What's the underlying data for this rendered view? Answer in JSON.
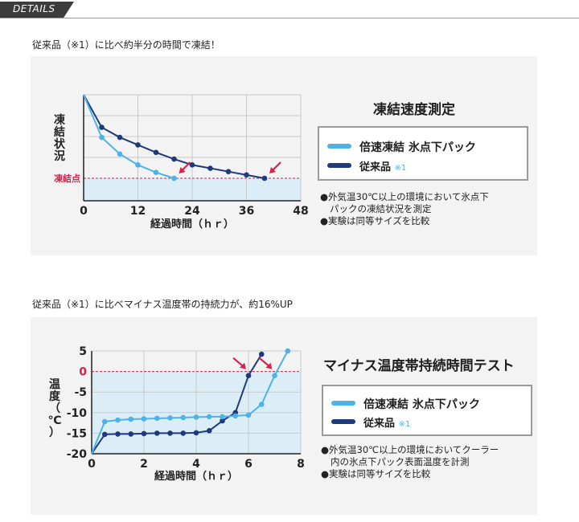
{
  "header": {
    "tab_label": "DETAILS"
  },
  "section1": {
    "caption": "従来品（※1）に比べ約半分の時間で凍結！",
    "title": "凍結速度測定",
    "legend": {
      "series1_label": "倍速凍結 氷点下パック",
      "series2_label": "従来品",
      "series2_note": "※1"
    },
    "notes": [
      "●外気温30℃以上の環境において氷点下",
      "パックの凍結状況を測定",
      "●実験は同等サイズを比較"
    ]
  },
  "section2": {
    "caption": "従来品（※1）に比べマイナス温度帯の持続力が、約16%UP",
    "title": "マイナス温度帯持続時間テスト",
    "legend": {
      "series1_label": "倍速凍結 氷点下パック",
      "series2_label": "従来品",
      "series2_note": "※1"
    },
    "notes": [
      "●外気温30℃以上の環境においてクーラー",
      "内の氷点下パック表面温度を計測",
      "●実験は同等サイズを比較"
    ]
  },
  "colors": {
    "series_light": "#4db3e6",
    "series_dark": "#1f3a7a",
    "marker": "#d6214a",
    "zone_fill": "#dbeef8",
    "grid": "#c9c9c9",
    "axis": "#222222"
  },
  "chart_data": [
    {
      "type": "line",
      "xlabel": "経過時間（ｈｒ）",
      "ylabel": "凍結状況",
      "threshold_label": "凍結点",
      "xlim": [
        0,
        48
      ],
      "xticks": [
        0,
        12,
        24,
        36,
        48
      ],
      "ylim": [
        0,
        100
      ],
      "threshold": 0,
      "grid": true,
      "series": [
        {
          "name": "倍速凍結 氷点下パック",
          "x": [
            0,
            4,
            8,
            12,
            16,
            20
          ],
          "y": [
            100,
            49,
            29,
            16,
            7,
            0
          ]
        },
        {
          "name": "従来品",
          "x": [
            0,
            4,
            8,
            12,
            16,
            20,
            24,
            28,
            32,
            36,
            40
          ],
          "y": [
            100,
            61,
            49,
            40,
            31,
            23,
            16,
            12,
            8,
            4,
            0
          ]
        }
      ],
      "arrows_at": [
        20,
        40
      ]
    },
    {
      "type": "line",
      "xlabel": "経過時間（ｈｒ）",
      "ylabel": "温度（℃）",
      "xlim": [
        0,
        8
      ],
      "xticks": [
        0,
        2,
        4,
        6,
        8
      ],
      "ylim": [
        -20,
        5
      ],
      "yticks": [
        5,
        0,
        -5,
        -10,
        -15,
        -20
      ],
      "threshold": 0,
      "grid": true,
      "series": [
        {
          "name": "倍速凍結 氷点下パック",
          "x": [
            0,
            0.5,
            1,
            1.5,
            2,
            2.5,
            3,
            3.5,
            4,
            4.5,
            5,
            5.5,
            6,
            6.5,
            7,
            7.5
          ],
          "y": [
            -20,
            -12.2,
            -11.8,
            -11.6,
            -11.5,
            -11.4,
            -11.3,
            -11.2,
            -11.1,
            -11.0,
            -11.0,
            -10.8,
            -10.6,
            -8,
            -1,
            5
          ]
        },
        {
          "name": "従来品",
          "x": [
            0,
            0.5,
            1,
            1.5,
            2,
            2.5,
            3,
            3.5,
            4,
            4.5,
            5,
            5.5,
            6,
            6.5
          ],
          "y": [
            -20,
            -15.3,
            -15.2,
            -15.2,
            -15.1,
            -15.0,
            -15.0,
            -15.0,
            -14.9,
            -14.4,
            -12,
            -10,
            -1,
            4.2
          ]
        }
      ],
      "arrows_at": [
        6,
        7
      ]
    }
  ]
}
